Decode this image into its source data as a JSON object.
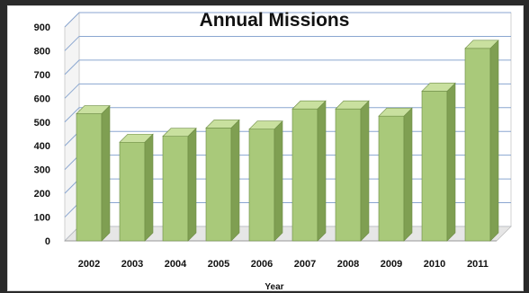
{
  "chart_data": {
    "type": "bar",
    "title": "Annual Missions",
    "xlabel": "Year",
    "ylabel": "",
    "categories": [
      "2002",
      "2003",
      "2004",
      "2005",
      "2006",
      "2007",
      "2008",
      "2009",
      "2010",
      "2011"
    ],
    "values": [
      535,
      415,
      440,
      475,
      470,
      555,
      555,
      525,
      630,
      810
    ],
    "ylim": [
      0,
      900
    ],
    "yticks": [
      0,
      100,
      200,
      300,
      400,
      500,
      600,
      700,
      800,
      900
    ],
    "grid": true,
    "legend": "none",
    "colors": {
      "bar_front": "#a9c97a",
      "bar_side": "#7f9f52",
      "bar_top": "#c9e09f",
      "bar_edge": "#6d8c44",
      "gridline": "#8aa6d0",
      "floor": "#e6e6e6"
    }
  }
}
